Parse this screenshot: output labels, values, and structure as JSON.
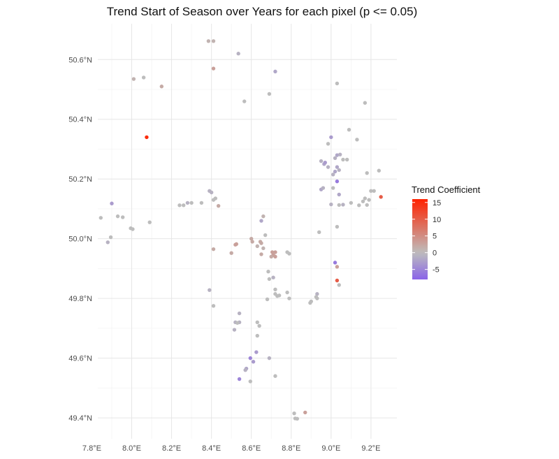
{
  "chart_data": {
    "type": "scatter",
    "title": "Trend Start of Season over Years for each pixel (p <= 0.05)",
    "xlabel": "",
    "ylabel": "",
    "xlim": [
      7.83,
      9.33
    ],
    "ylim": [
      49.33,
      50.72
    ],
    "x_ticks": [
      7.8,
      8.0,
      8.2,
      8.4,
      8.6,
      8.8,
      9.0,
      9.2
    ],
    "x_tick_labels": [
      "7.8°E",
      "8.0°E",
      "8.2°E",
      "8.4°E",
      "8.6°E",
      "8.8°E",
      "9.0°E",
      "9.2°E"
    ],
    "y_ticks": [
      49.4,
      49.6,
      49.8,
      50.0,
      50.2,
      50.4,
      50.6
    ],
    "y_tick_labels": [
      "49.4°N",
      "49.6°N",
      "49.8°N",
      "50.0°N",
      "50.2°N",
      "50.4°N",
      "50.6°N"
    ],
    "grid": true,
    "legend": {
      "title": "Trend Coefficient",
      "placement": "right",
      "ticks": [
        15,
        10,
        5,
        0,
        -5
      ],
      "tick_labels": [
        "15",
        "10",
        "5",
        "0",
        "-5"
      ],
      "range": [
        -8,
        16
      ],
      "colors": {
        "low": "#8a63e8",
        "mid": "#bdbdbd",
        "high": "#ff2200"
      }
    },
    "points": [
      {
        "x": 8.385,
        "y": 50.662,
        "v": 1
      },
      {
        "x": 8.41,
        "y": 50.662,
        "v": 1
      },
      {
        "x": 8.535,
        "y": 50.62,
        "v": -1
      },
      {
        "x": 8.41,
        "y": 50.57,
        "v": 3
      },
      {
        "x": 8.72,
        "y": 50.56,
        "v": -2
      },
      {
        "x": 8.01,
        "y": 50.535,
        "v": 1
      },
      {
        "x": 8.06,
        "y": 50.54,
        "v": 0
      },
      {
        "x": 8.15,
        "y": 50.51,
        "v": 2
      },
      {
        "x": 9.03,
        "y": 50.52,
        "v": 0
      },
      {
        "x": 8.69,
        "y": 50.485,
        "v": 0
      },
      {
        "x": 8.565,
        "y": 50.46,
        "v": 0
      },
      {
        "x": 9.17,
        "y": 50.455,
        "v": 0
      },
      {
        "x": 8.075,
        "y": 50.34,
        "v": 15
      },
      {
        "x": 9.09,
        "y": 50.365,
        "v": 0
      },
      {
        "x": 9.13,
        "y": 50.332,
        "v": 0
      },
      {
        "x": 9.0,
        "y": 50.34,
        "v": -3
      },
      {
        "x": 8.985,
        "y": 50.318,
        "v": 0
      },
      {
        "x": 9.03,
        "y": 50.28,
        "v": -2
      },
      {
        "x": 9.045,
        "y": 50.282,
        "v": -1
      },
      {
        "x": 9.02,
        "y": 50.27,
        "v": -1
      },
      {
        "x": 9.06,
        "y": 50.265,
        "v": 0
      },
      {
        "x": 9.08,
        "y": 50.265,
        "v": 0
      },
      {
        "x": 8.95,
        "y": 50.26,
        "v": -1
      },
      {
        "x": 8.965,
        "y": 50.25,
        "v": -2
      },
      {
        "x": 8.97,
        "y": 50.255,
        "v": -3
      },
      {
        "x": 8.985,
        "y": 50.24,
        "v": -1
      },
      {
        "x": 9.03,
        "y": 50.24,
        "v": -2
      },
      {
        "x": 9.02,
        "y": 50.225,
        "v": -2
      },
      {
        "x": 9.04,
        "y": 50.23,
        "v": -1
      },
      {
        "x": 9.01,
        "y": 50.215,
        "v": -1
      },
      {
        "x": 9.18,
        "y": 50.22,
        "v": 0
      },
      {
        "x": 9.24,
        "y": 50.228,
        "v": 0
      },
      {
        "x": 9.03,
        "y": 50.192,
        "v": -6
      },
      {
        "x": 8.95,
        "y": 50.165,
        "v": -2
      },
      {
        "x": 8.96,
        "y": 50.17,
        "v": -1
      },
      {
        "x": 9.01,
        "y": 50.17,
        "v": 0
      },
      {
        "x": 9.04,
        "y": 50.148,
        "v": -2
      },
      {
        "x": 9.2,
        "y": 50.16,
        "v": 0
      },
      {
        "x": 9.215,
        "y": 50.16,
        "v": 0
      },
      {
        "x": 9.25,
        "y": 50.14,
        "v": 10
      },
      {
        "x": 9.17,
        "y": 50.135,
        "v": 0
      },
      {
        "x": 9.19,
        "y": 50.13,
        "v": 0
      },
      {
        "x": 9.16,
        "y": 50.125,
        "v": 0
      },
      {
        "x": 9.1,
        "y": 50.12,
        "v": 0
      },
      {
        "x": 9.14,
        "y": 50.112,
        "v": 0
      },
      {
        "x": 9.06,
        "y": 50.114,
        "v": -1
      },
      {
        "x": 9.18,
        "y": 50.113,
        "v": 0
      },
      {
        "x": 9.0,
        "y": 50.115,
        "v": -1
      },
      {
        "x": 9.04,
        "y": 50.113,
        "v": 0
      },
      {
        "x": 8.39,
        "y": 50.16,
        "v": -1
      },
      {
        "x": 8.4,
        "y": 50.155,
        "v": -1
      },
      {
        "x": 8.42,
        "y": 50.135,
        "v": 0
      },
      {
        "x": 8.41,
        "y": 50.13,
        "v": 0
      },
      {
        "x": 8.35,
        "y": 50.12,
        "v": 0
      },
      {
        "x": 8.3,
        "y": 50.12,
        "v": 0
      },
      {
        "x": 8.28,
        "y": 50.12,
        "v": -1
      },
      {
        "x": 8.26,
        "y": 50.112,
        "v": 0
      },
      {
        "x": 8.24,
        "y": 50.112,
        "v": 0
      },
      {
        "x": 8.435,
        "y": 50.11,
        "v": 2
      },
      {
        "x": 7.9,
        "y": 50.118,
        "v": -3
      },
      {
        "x": 7.93,
        "y": 50.075,
        "v": 0
      },
      {
        "x": 7.955,
        "y": 50.072,
        "v": 0
      },
      {
        "x": 7.845,
        "y": 50.07,
        "v": 0
      },
      {
        "x": 8.09,
        "y": 50.055,
        "v": 0
      },
      {
        "x": 7.995,
        "y": 50.035,
        "v": 0
      },
      {
        "x": 8.005,
        "y": 50.032,
        "v": 0
      },
      {
        "x": 7.895,
        "y": 50.005,
        "v": 0
      },
      {
        "x": 7.88,
        "y": 49.988,
        "v": -1
      },
      {
        "x": 8.66,
        "y": 50.075,
        "v": 1
      },
      {
        "x": 8.65,
        "y": 50.06,
        "v": -2
      },
      {
        "x": 8.94,
        "y": 50.022,
        "v": 0
      },
      {
        "x": 9.03,
        "y": 50.04,
        "v": 0
      },
      {
        "x": 8.67,
        "y": 50.012,
        "v": 0
      },
      {
        "x": 8.6,
        "y": 50.0,
        "v": 2
      },
      {
        "x": 8.605,
        "y": 49.99,
        "v": 2
      },
      {
        "x": 8.645,
        "y": 49.99,
        "v": 2
      },
      {
        "x": 8.65,
        "y": 49.985,
        "v": 2
      },
      {
        "x": 8.525,
        "y": 49.982,
        "v": 3
      },
      {
        "x": 8.52,
        "y": 49.98,
        "v": 3
      },
      {
        "x": 8.41,
        "y": 49.965,
        "v": 2
      },
      {
        "x": 8.63,
        "y": 49.975,
        "v": 1
      },
      {
        "x": 8.66,
        "y": 49.968,
        "v": 1
      },
      {
        "x": 8.705,
        "y": 49.955,
        "v": 3
      },
      {
        "x": 8.72,
        "y": 49.955,
        "v": 3
      },
      {
        "x": 8.71,
        "y": 49.945,
        "v": 3
      },
      {
        "x": 8.7,
        "y": 49.94,
        "v": 2
      },
      {
        "x": 8.72,
        "y": 49.94,
        "v": 3
      },
      {
        "x": 8.78,
        "y": 49.955,
        "v": 0
      },
      {
        "x": 8.79,
        "y": 49.95,
        "v": 0
      },
      {
        "x": 8.5,
        "y": 49.952,
        "v": 2
      },
      {
        "x": 8.65,
        "y": 49.948,
        "v": 2
      },
      {
        "x": 9.02,
        "y": 49.92,
        "v": -6
      },
      {
        "x": 9.03,
        "y": 49.906,
        "v": 3
      },
      {
        "x": 8.685,
        "y": 49.89,
        "v": 0
      },
      {
        "x": 8.69,
        "y": 49.865,
        "v": 0
      },
      {
        "x": 8.71,
        "y": 49.87,
        "v": -1
      },
      {
        "x": 9.03,
        "y": 49.86,
        "v": 10
      },
      {
        "x": 9.04,
        "y": 49.845,
        "v": 0
      },
      {
        "x": 8.72,
        "y": 49.83,
        "v": 0
      },
      {
        "x": 8.39,
        "y": 49.828,
        "v": -1
      },
      {
        "x": 8.72,
        "y": 49.815,
        "v": 0
      },
      {
        "x": 8.73,
        "y": 49.808,
        "v": 0
      },
      {
        "x": 8.74,
        "y": 49.81,
        "v": 0
      },
      {
        "x": 8.78,
        "y": 49.82,
        "v": 0
      },
      {
        "x": 8.79,
        "y": 49.8,
        "v": 0
      },
      {
        "x": 8.68,
        "y": 49.797,
        "v": 0
      },
      {
        "x": 8.93,
        "y": 49.815,
        "v": -1
      },
      {
        "x": 8.925,
        "y": 49.805,
        "v": 0
      },
      {
        "x": 8.93,
        "y": 49.8,
        "v": 0
      },
      {
        "x": 8.9,
        "y": 49.79,
        "v": 0
      },
      {
        "x": 8.895,
        "y": 49.785,
        "v": 0
      },
      {
        "x": 8.41,
        "y": 49.775,
        "v": 0
      },
      {
        "x": 8.54,
        "y": 49.75,
        "v": -1
      },
      {
        "x": 8.52,
        "y": 49.72,
        "v": -1
      },
      {
        "x": 8.54,
        "y": 49.72,
        "v": -1
      },
      {
        "x": 8.53,
        "y": 49.718,
        "v": 0
      },
      {
        "x": 8.63,
        "y": 49.72,
        "v": 0
      },
      {
        "x": 8.64,
        "y": 49.708,
        "v": 0
      },
      {
        "x": 8.515,
        "y": 49.695,
        "v": -1
      },
      {
        "x": 8.63,
        "y": 49.675,
        "v": 0
      },
      {
        "x": 8.625,
        "y": 49.62,
        "v": -3
      },
      {
        "x": 8.595,
        "y": 49.6,
        "v": -5
      },
      {
        "x": 8.69,
        "y": 49.6,
        "v": -1
      },
      {
        "x": 8.61,
        "y": 49.588,
        "v": -3
      },
      {
        "x": 8.575,
        "y": 49.565,
        "v": -2
      },
      {
        "x": 8.57,
        "y": 49.56,
        "v": -1
      },
      {
        "x": 8.72,
        "y": 49.54,
        "v": 0
      },
      {
        "x": 8.54,
        "y": 49.53,
        "v": -5
      },
      {
        "x": 8.595,
        "y": 49.522,
        "v": 0
      },
      {
        "x": 8.815,
        "y": 49.415,
        "v": 0
      },
      {
        "x": 8.87,
        "y": 49.418,
        "v": 3
      },
      {
        "x": 8.82,
        "y": 49.398,
        "v": 0
      },
      {
        "x": 8.83,
        "y": 49.397,
        "v": 0
      }
    ]
  }
}
